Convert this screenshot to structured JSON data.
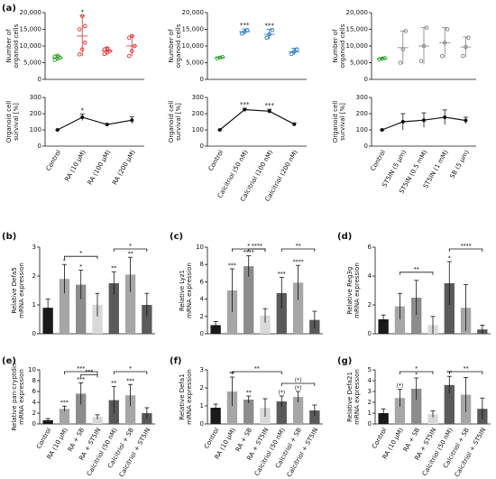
{
  "panels": [
    "(a)",
    "(b)",
    "(c)",
    "(d)",
    "(e)",
    "(f)",
    "(g)"
  ],
  "bar_groups": {
    "categories": [
      "Control",
      "RA (10 µM)",
      "RA + SB",
      "RA + ST5IN",
      "Calcitriol (50 nM)",
      "Calcitriol + SB",
      "Calcitriol + ST5IN"
    ],
    "colors": [
      "#1a1a1a",
      "#a6a6a6",
      "#8c8c8c",
      "#d9d9d9",
      "#5a5a5a",
      "#a6a6a6",
      "#5a5a5a"
    ]
  },
  "chart_data": [
    {
      "type": "dot",
      "ylabel": [
        "Number of",
        "organoid cells"
      ],
      "ylim": [
        0,
        20000
      ],
      "yticks": [
        0,
        {
          "value": 5000,
          "label": "5,000"
        },
        {
          "value": 10000,
          "label": "10,000"
        },
        {
          "value": 15000,
          "label": "15,000"
        },
        {
          "value": 20000,
          "label": "20,000"
        }
      ],
      "groups": [
        {
          "color": "#2ca02c",
          "points": [
            5800,
            6200,
            6500,
            6900,
            7100
          ],
          "mean": 6500,
          "error": 700
        },
        {
          "color": "#e03030",
          "points": [
            7500,
            9000,
            11000,
            15000,
            19000,
            16000
          ],
          "mean": 13000,
          "error": 6000,
          "star": "*"
        },
        {
          "color": "#e03030",
          "points": [
            7600,
            8000,
            8500,
            9000,
            9300
          ],
          "mean": 8500,
          "error": 1000
        },
        {
          "color": "#e03030",
          "points": [
            7000,
            8500,
            10000,
            12500,
            13000
          ],
          "mean": 10000,
          "error": 3000
        }
      ]
    },
    {
      "type": "dot",
      "ylabel": [
        "Number of",
        "organoid cells"
      ],
      "ylim": [
        0,
        20000
      ],
      "yticks": [
        0,
        {
          "value": 5000,
          "label": "5,000"
        },
        {
          "value": 10000,
          "label": "10,000"
        },
        {
          "value": 15000,
          "label": "15,000"
        },
        {
          "value": 20000,
          "label": "20,000"
        }
      ],
      "groups": [
        {
          "color": "#2ca02c",
          "points": [
            6300,
            6500,
            6700
          ],
          "mean": 6500,
          "error": 200
        },
        {
          "color": "#1f77c4",
          "points": [
            13700,
            14200,
            14800
          ],
          "mean": 14300,
          "error": 800,
          "star": "***"
        },
        {
          "color": "#1f77c4",
          "points": [
            12500,
            13500,
            14800
          ],
          "mean": 13500,
          "error": 1500,
          "star": "***"
        },
        {
          "color": "#1f77c4",
          "points": [
            7600,
            8300,
            9000
          ],
          "mean": 8300,
          "error": 1000
        }
      ]
    },
    {
      "type": "dot",
      "ylabel": [
        "Number of",
        "organoid cells"
      ],
      "ylim": [
        0,
        20000
      ],
      "yticks": [
        0,
        {
          "value": 5000,
          "label": "5,000"
        },
        {
          "value": 10000,
          "label": "10,000"
        },
        {
          "value": 15000,
          "label": "15,000"
        },
        {
          "value": 20000,
          "label": "20,000"
        }
      ],
      "groups": [
        {
          "color": "#2ca02c",
          "points": [
            6000,
            6200,
            6400
          ],
          "mean": 6200,
          "error": 300
        },
        {
          "color": "#808080",
          "points": [
            5000,
            9000,
            14500
          ],
          "mean": 9500,
          "error": 5000
        },
        {
          "color": "#808080",
          "points": [
            5500,
            10000,
            15500
          ],
          "mean": 10000,
          "error": 5500
        },
        {
          "color": "#808080",
          "points": [
            7000,
            11000,
            15000
          ],
          "mean": 11000,
          "error": 4500
        },
        {
          "color": "#808080",
          "points": [
            7000,
            9700,
            12500
          ],
          "mean": 9700,
          "error": 3000
        }
      ]
    },
    {
      "type": "line",
      "ylabel": [
        "Organoid cell",
        "survival [%]"
      ],
      "ylim": [
        0,
        300
      ],
      "yticks": [
        0,
        100,
        200,
        300
      ],
      "categories": [
        "Control",
        "RA (10 µM)",
        "RA (100 µM)",
        "RA (200 µM)"
      ],
      "values": [
        100,
        178,
        133,
        160
      ],
      "errors": [
        0,
        20,
        5,
        20
      ],
      "stars": [
        null,
        "*",
        null,
        null
      ]
    },
    {
      "type": "line",
      "ylabel": [
        "Organoid cell",
        "survival [%]"
      ],
      "ylim": [
        0,
        300
      ],
      "yticks": [
        0,
        100,
        200,
        300
      ],
      "categories": [
        "Control",
        "Calcitriol (50 nM)",
        "Calcitriol (100 nM)",
        "Calcitriol (200 nM)"
      ],
      "values": [
        100,
        225,
        215,
        135
      ],
      "errors": [
        0,
        8,
        12,
        8
      ],
      "stars": [
        null,
        "***",
        "***",
        null
      ]
    },
    {
      "type": "line",
      "ylabel": [
        "Organoid cell",
        "survival [%]"
      ],
      "ylim": [
        0,
        300
      ],
      "yticks": [
        0,
        100,
        200,
        300
      ],
      "categories": [
        "Control",
        "ST5IN (5 µm)",
        "ST5IN (0.5 mM)",
        "ST5IN (1 mM)",
        "SB (5 µm)"
      ],
      "values": [
        100,
        150,
        160,
        178,
        158
      ],
      "errors": [
        0,
        50,
        45,
        45,
        20
      ],
      "stars": [
        null,
        null,
        null,
        null,
        null
      ]
    },
    {
      "type": "bar",
      "ylabel": [
        "Relative Defa5",
        "mRNA expression"
      ],
      "ylim": [
        0,
        3
      ],
      "yticks": [
        0,
        1,
        2,
        3
      ],
      "values": [
        0.9,
        1.9,
        1.7,
        1.0,
        1.75,
        2.05,
        1.0
      ],
      "errors": [
        0.3,
        0.5,
        0.5,
        0.4,
        0.4,
        0.6,
        0.4
      ],
      "stars": [
        null,
        "*",
        "*",
        null,
        "**",
        "**",
        null
      ],
      "brackets": [
        {
          "from": "RA (10 µM)",
          "to": "RA + ST5IN",
          "label": "*"
        },
        {
          "from": "Calcitriol (50 nM)",
          "to": "Calcitriol + ST5IN",
          "label": "*"
        }
      ]
    },
    {
      "type": "bar",
      "ylabel": [
        "Relative Lyz1",
        "mRNA expression"
      ],
      "ylim": [
        0,
        10
      ],
      "yticks": [
        0,
        2,
        4,
        6,
        8,
        10
      ],
      "values": [
        1.0,
        5.0,
        7.8,
        2.1,
        4.7,
        5.9,
        1.6
      ],
      "errors": [
        0.4,
        2.5,
        1.2,
        0.8,
        1.8,
        2.0,
        1.0
      ],
      "stars": [
        null,
        "***",
        "****",
        null,
        "***",
        "****",
        null
      ],
      "brackets": [
        {
          "from": "RA + SB",
          "to": "RA + ST5IN",
          "label": "****"
        },
        {
          "from": "RA (10 µM)",
          "to": "RA + ST5IN",
          "label": "*"
        },
        {
          "from": "Calcitriol (50 nM)",
          "to": "Calcitriol + ST5IN",
          "label": "**"
        }
      ]
    },
    {
      "type": "bar",
      "ylabel": [
        "Relative Reg3g",
        "mRNA expression"
      ],
      "ylim": [
        0,
        6
      ],
      "yticks": [
        0,
        2,
        4,
        6
      ],
      "values": [
        1.0,
        1.9,
        2.5,
        0.6,
        3.5,
        1.8,
        0.3
      ],
      "errors": [
        0.3,
        0.9,
        1.2,
        0.6,
        1.5,
        1.6,
        0.3
      ],
      "stars": [
        null,
        null,
        null,
        null,
        "*",
        null,
        null
      ],
      "brackets": [
        {
          "from": "RA (10 µM)",
          "to": "RA + ST5IN",
          "label": "**"
        },
        {
          "from": "Calcitriol (50 nM)",
          "to": "Calcitriol + ST5IN",
          "label": "****"
        }
      ]
    },
    {
      "type": "bar",
      "ylabel": [
        "Relative pan-cryptdin",
        "mRNA expression"
      ],
      "ylim": [
        0,
        10
      ],
      "yticks": [
        0,
        2,
        4,
        6,
        8,
        10
      ],
      "values": [
        0.7,
        2.8,
        5.6,
        1.3,
        4.4,
        5.3,
        2.0
      ],
      "errors": [
        0.3,
        0.5,
        2.0,
        0.4,
        2.5,
        2.0,
        1.0
      ],
      "stars": [
        null,
        "***",
        "***",
        null,
        "**",
        "***",
        null
      ],
      "brackets": [
        {
          "from": "RA + SB",
          "to": "RA + ST5IN",
          "label": "***"
        },
        {
          "from": "RA (10 µM)",
          "to": "RA + ST5IN",
          "label": "***"
        },
        {
          "from": "Calcitriol (50 nM)",
          "to": "Calcitriol + ST5IN",
          "label": "*"
        }
      ]
    },
    {
      "type": "bar",
      "ylabel": [
        "Relative Defa1",
        "mRNA expression"
      ],
      "ylim": [
        0,
        3
      ],
      "yticks": [
        0,
        1,
        2,
        3
      ],
      "values": [
        0.9,
        1.8,
        1.35,
        0.9,
        1.25,
        1.5,
        0.75
      ],
      "errors": [
        0.2,
        0.8,
        0.2,
        0.5,
        0.3,
        0.3,
        0.3
      ],
      "stars": [
        null,
        "**",
        "**",
        null,
        "(*)",
        "(*)",
        null
      ],
      "brackets": [
        {
          "from": "Calcitriol (50 nM)",
          "to": "Calcitriol + ST5IN",
          "label": "(*)"
        },
        {
          "from": "RA (10 µM)",
          "to": "Calcitriol (50 nM)",
          "label": "**"
        }
      ]
    },
    {
      "type": "bar",
      "ylabel": [
        "Relative Defa21",
        "mRNA expression"
      ],
      "ylim": [
        0,
        5
      ],
      "yticks": [
        0,
        1,
        2,
        3,
        4,
        5
      ],
      "values": [
        1.0,
        2.4,
        3.25,
        0.9,
        3.6,
        2.7,
        1.4
      ],
      "errors": [
        0.4,
        0.8,
        1.0,
        0.3,
        0.8,
        1.6,
        1.0
      ],
      "stars": [
        null,
        "(*)",
        "*",
        null,
        "**",
        null,
        null
      ],
      "brackets": [
        {
          "from": "RA (10 µM)",
          "to": "RA + ST5IN",
          "label": "*"
        },
        {
          "from": "Calcitriol (50 nM)",
          "to": "Calcitriol + ST5IN",
          "label": "**"
        }
      ]
    }
  ]
}
